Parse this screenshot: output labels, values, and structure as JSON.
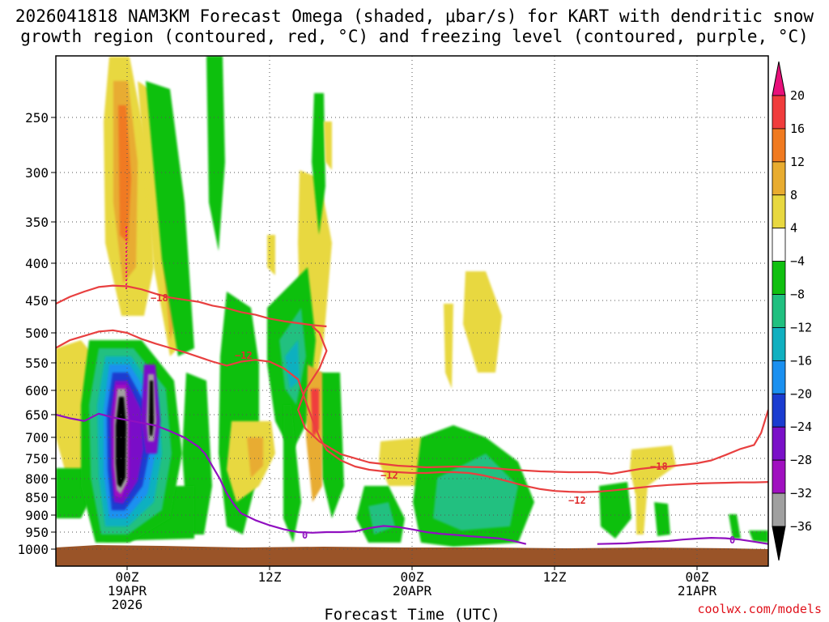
{
  "chart_data": {
    "type": "heatmap",
    "title_lines": [
      "2026041818 NAM3KM Forecast Omega (shaded, μbar/s) for KART with dendritic snow",
      "growth region (contoured, red, °C) and freezing level (contoured, purple, °C)"
    ],
    "xlabel": "Forecast Time (UTC)",
    "credit": "coolwx.com/models",
    "y_pressure_ticks": [
      250,
      300,
      350,
      400,
      450,
      500,
      550,
      600,
      650,
      700,
      750,
      800,
      850,
      900,
      950,
      1000
    ],
    "y_range_hpa": [
      200,
      1025
    ],
    "x_range_hours": [
      -10,
      90
    ],
    "x_ticks": [
      {
        "hour": 0,
        "lines": [
          "00Z",
          "19APR",
          "2026"
        ]
      },
      {
        "hour": 20,
        "lines": [
          "12Z"
        ]
      },
      {
        "hour": 40,
        "lines": [
          "00Z",
          "20APR"
        ]
      },
      {
        "hour": 60,
        "lines": [
          "12Z"
        ]
      },
      {
        "hour": 80,
        "lines": [
          "00Z",
          "21APR"
        ]
      }
    ],
    "colorbar": {
      "labels": [
        "20",
        "16",
        "12",
        "8",
        "4",
        "−4",
        "−8",
        "−12",
        "−16",
        "−20",
        "−24",
        "−28",
        "−32",
        "−36"
      ],
      "colors": [
        "#e8107a",
        "#f03c3c",
        "#f07a20",
        "#e8ac30",
        "#e8d840",
        "#ffffff",
        "#10c010",
        "#20c080",
        "#10b0c0",
        "#1a90f0",
        "#1a3cd0",
        "#7a10c8",
        "#a010c0",
        "#a0a0a0",
        "#000000"
      ]
    },
    "contour_labels": {
      "dgz_upper": "−18",
      "dgz_lower": "−12",
      "dgz_lower_b": "−12",
      "dgz_lower_c": "−12",
      "dgz_upper_b": "−18",
      "freezing": "0",
      "freezing_b": "0"
    },
    "series": [
      {
        "name": "-18C isotherm",
        "color": "#e84040",
        "points": [
          [
            -10,
            455
          ],
          [
            -8,
            445
          ],
          [
            -6,
            438
          ],
          [
            -4,
            432
          ],
          [
            -2,
            430
          ],
          [
            0,
            431
          ],
          [
            2,
            435
          ],
          [
            4,
            441
          ],
          [
            6,
            446
          ],
          [
            8,
            449
          ],
          [
            10,
            452
          ],
          [
            12,
            458
          ],
          [
            14,
            462
          ],
          [
            16,
            468
          ],
          [
            18,
            472
          ],
          [
            20,
            478
          ],
          [
            22,
            482
          ],
          [
            24,
            485
          ],
          [
            26,
            488
          ],
          [
            28,
            490
          ]
        ]
      },
      {
        "name": "-12C isotherm",
        "color": "#e84040",
        "points": [
          [
            -10,
            525
          ],
          [
            -8,
            512
          ],
          [
            -6,
            505
          ],
          [
            -4,
            498
          ],
          [
            -2,
            496
          ],
          [
            0,
            500
          ],
          [
            2,
            510
          ],
          [
            4,
            518
          ],
          [
            6,
            525
          ],
          [
            8,
            532
          ],
          [
            10,
            540
          ],
          [
            12,
            548
          ],
          [
            14,
            555
          ],
          [
            16,
            548
          ],
          [
            18,
            545
          ],
          [
            20,
            548
          ],
          [
            22,
            560
          ],
          [
            24,
            580
          ],
          [
            25,
            620
          ],
          [
            26,
            660
          ],
          [
            27,
            700
          ],
          [
            28,
            730
          ],
          [
            30,
            755
          ],
          [
            32,
            770
          ],
          [
            34,
            778
          ],
          [
            36,
            782
          ],
          [
            38,
            784
          ],
          [
            40,
            786
          ],
          [
            42,
            786
          ],
          [
            44,
            784
          ],
          [
            46,
            784
          ],
          [
            48,
            786
          ],
          [
            50,
            792
          ],
          [
            52,
            800
          ],
          [
            54,
            810
          ],
          [
            56,
            820
          ],
          [
            58,
            828
          ],
          [
            60,
            833
          ],
          [
            62,
            835
          ],
          [
            64,
            836
          ],
          [
            66,
            835
          ],
          [
            68,
            832
          ],
          [
            70,
            828
          ],
          [
            72,
            824
          ],
          [
            74,
            820
          ],
          [
            76,
            817
          ],
          [
            78,
            815
          ],
          [
            80,
            813
          ],
          [
            82,
            812
          ],
          [
            84,
            811
          ],
          [
            86,
            810
          ],
          [
            88,
            810
          ],
          [
            90,
            809
          ]
        ]
      },
      {
        "name": "-18C isotherm lower",
        "color": "#e84040",
        "points": [
          [
            26,
            490
          ],
          [
            27,
            500
          ],
          [
            28,
            530
          ],
          [
            27,
            560
          ],
          [
            25,
            600
          ],
          [
            24,
            640
          ],
          [
            25,
            680
          ],
          [
            27,
            710
          ],
          [
            30,
            740
          ],
          [
            34,
            760
          ],
          [
            38,
            768
          ],
          [
            42,
            772
          ],
          [
            46,
            770
          ],
          [
            50,
            772
          ],
          [
            54,
            778
          ],
          [
            58,
            782
          ],
          [
            62,
            784
          ],
          [
            66,
            784
          ],
          [
            68,
            788
          ],
          [
            70,
            782
          ],
          [
            72,
            776
          ],
          [
            74,
            772
          ],
          [
            76,
            770
          ],
          [
            78,
            766
          ],
          [
            80,
            762
          ],
          [
            82,
            755
          ],
          [
            84,
            742
          ],
          [
            86,
            728
          ],
          [
            88,
            718
          ],
          [
            89,
            690
          ],
          [
            90,
            640
          ]
        ]
      },
      {
        "name": "0C freezing level",
        "color": "#9010c0",
        "points": [
          [
            -10,
            650
          ],
          [
            -8,
            658
          ],
          [
            -6,
            664
          ],
          [
            -4,
            648
          ],
          [
            -2,
            656
          ],
          [
            0,
            662
          ],
          [
            2,
            668
          ],
          [
            4,
            674
          ],
          [
            6,
            686
          ],
          [
            8,
            700
          ],
          [
            10,
            722
          ],
          [
            11,
            740
          ],
          [
            12,
            770
          ],
          [
            13,
            800
          ],
          [
            14,
            840
          ],
          [
            15,
            870
          ],
          [
            16,
            895
          ],
          [
            18,
            915
          ],
          [
            20,
            930
          ],
          [
            22,
            942
          ],
          [
            24,
            950
          ],
          [
            26,
            952
          ],
          [
            28,
            950
          ],
          [
            30,
            950
          ],
          [
            32,
            948
          ],
          [
            34,
            938
          ],
          [
            36,
            932
          ],
          [
            38,
            935
          ],
          [
            40,
            942
          ],
          [
            42,
            950
          ],
          [
            44,
            955
          ],
          [
            46,
            958
          ],
          [
            48,
            962
          ],
          [
            50,
            965
          ],
          [
            52,
            968
          ],
          [
            54,
            975
          ],
          [
            56,
            985
          ]
        ]
      },
      {
        "name": "0C freezing level late",
        "color": "#9010c0",
        "points": [
          [
            66,
            985
          ],
          [
            70,
            983
          ],
          [
            72,
            980
          ],
          [
            74,
            978
          ],
          [
            76,
            976
          ],
          [
            78,
            972
          ],
          [
            80,
            969
          ],
          [
            82,
            967
          ],
          [
            84,
            968
          ],
          [
            86,
            972
          ],
          [
            88,
            978
          ],
          [
            90,
            985
          ]
        ]
      }
    ]
  }
}
